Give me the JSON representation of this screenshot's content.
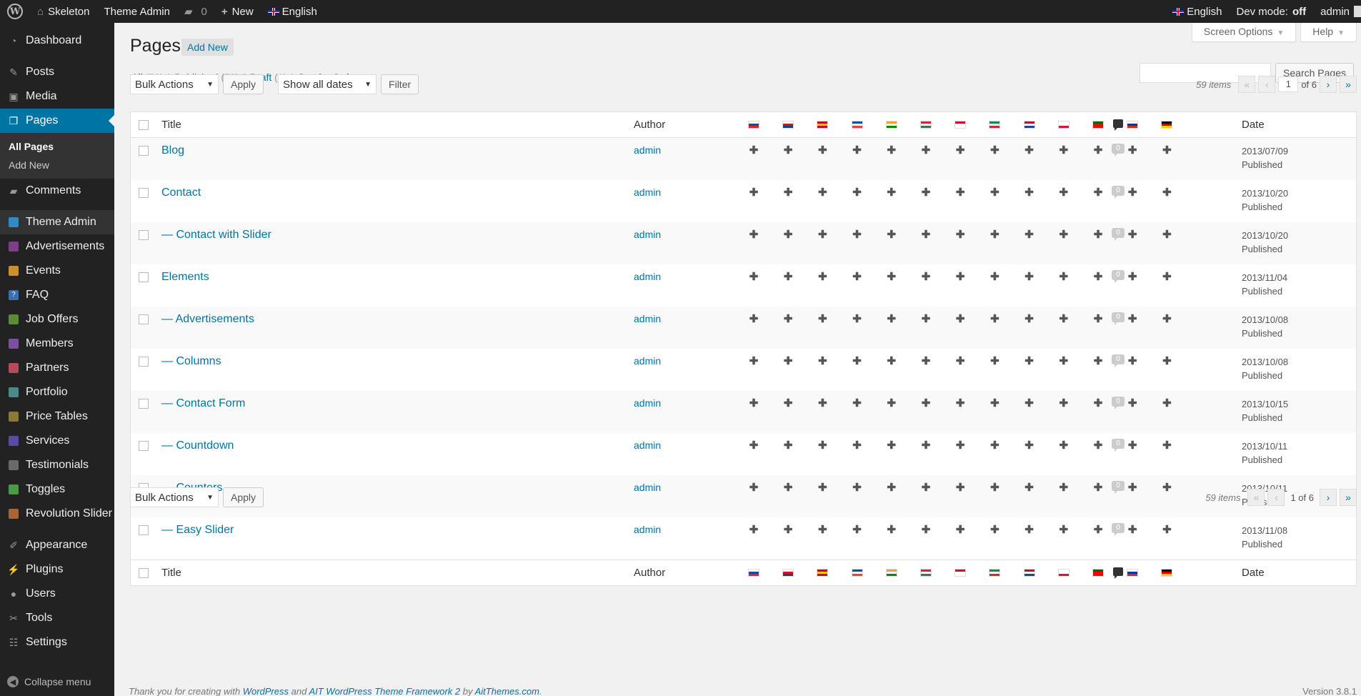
{
  "adminbar": {
    "site_name": "Skeleton",
    "theme_admin": "Theme Admin",
    "comments_count": "0",
    "new_label": "New",
    "language": "English",
    "right_language": "English",
    "dev_mode_label": "Dev mode:",
    "dev_mode_value": "off",
    "user": "admin"
  },
  "sidebar": {
    "items": [
      {
        "label": "Dashboard",
        "icon": "dashboard-icon"
      },
      {
        "label": "Posts",
        "icon": "pin-icon"
      },
      {
        "label": "Media",
        "icon": "media-icon"
      },
      {
        "label": "Pages",
        "icon": "pages-icon"
      },
      {
        "label": "Comments",
        "icon": "comments-icon"
      },
      {
        "label": "Theme Admin",
        "icon": "theme-admin-icon"
      },
      {
        "label": "Advertisements",
        "icon": "advertisements-icon"
      },
      {
        "label": "Events",
        "icon": "events-icon"
      },
      {
        "label": "FAQ",
        "icon": "faq-icon"
      },
      {
        "label": "Job Offers",
        "icon": "job-offers-icon"
      },
      {
        "label": "Members",
        "icon": "members-icon"
      },
      {
        "label": "Partners",
        "icon": "partners-icon"
      },
      {
        "label": "Portfolio",
        "icon": "portfolio-icon"
      },
      {
        "label": "Price Tables",
        "icon": "price-tables-icon"
      },
      {
        "label": "Services",
        "icon": "services-icon"
      },
      {
        "label": "Testimonials",
        "icon": "testimonials-icon"
      },
      {
        "label": "Toggles",
        "icon": "toggles-icon"
      },
      {
        "label": "Revolution Slider",
        "icon": "revolution-slider-icon"
      },
      {
        "label": "Appearance",
        "icon": "appearance-icon"
      },
      {
        "label": "Plugins",
        "icon": "plugins-icon"
      },
      {
        "label": "Users",
        "icon": "users-icon"
      },
      {
        "label": "Tools",
        "icon": "tools-icon"
      },
      {
        "label": "Settings",
        "icon": "settings-icon"
      }
    ],
    "submenu": [
      "All Pages",
      "Add New"
    ],
    "collapse_label": "Collapse menu"
  },
  "screen_meta": {
    "options": "Screen Options",
    "help": "Help"
  },
  "header": {
    "title": "Pages",
    "add_new": "Add New"
  },
  "filters": {
    "all": "All",
    "all_count": "(59)",
    "published": "Published",
    "published_count": "(58)",
    "draft": "Draft",
    "draft_count": "(1)",
    "sort": "Sort by Order"
  },
  "search": {
    "button": "Search Pages"
  },
  "tablenav_top": {
    "bulk": "Bulk Actions",
    "apply": "Apply",
    "dates": "Show all dates",
    "filter": "Filter",
    "items": "59 items",
    "current_page": "1",
    "of_pages": "of 6"
  },
  "tablenav_bottom": {
    "bulk": "Bulk Actions",
    "apply": "Apply",
    "items": "59 items",
    "page_text": "1 of 6"
  },
  "pagination_glyphs": {
    "first": "«",
    "prev": "‹",
    "next": "›",
    "last": "»"
  },
  "columns": {
    "title": "Title",
    "author": "Author",
    "date": "Date"
  },
  "flags": [
    {
      "code": "sk",
      "colors": [
        "#ffffff",
        "#0b4ea2",
        "#ee1c25"
      ]
    },
    {
      "code": "cz",
      "colors": [
        "#ffffff",
        "#d7141a",
        "#11457e"
      ]
    },
    {
      "code": "es",
      "colors": [
        "#c60b1e",
        "#ffc400",
        "#c60b1e"
      ]
    },
    {
      "code": "fr",
      "colors": [
        "#0055a4",
        "#ffffff",
        "#ef4135"
      ]
    },
    {
      "code": "in",
      "colors": [
        "#ff9933",
        "#ffffff",
        "#138808"
      ]
    },
    {
      "code": "hu",
      "colors": [
        "#ce2939",
        "#ffffff",
        "#477050"
      ]
    },
    {
      "code": "id",
      "colors": [
        "#ce1126",
        "#ffffff",
        "#ffffff"
      ]
    },
    {
      "code": "it",
      "colors": [
        "#009246",
        "#ffffff",
        "#ce2b37"
      ]
    },
    {
      "code": "nl",
      "colors": [
        "#ae1c28",
        "#ffffff",
        "#21468b"
      ]
    },
    {
      "code": "pl",
      "colors": [
        "#ffffff",
        "#ffffff",
        "#dc143c"
      ]
    },
    {
      "code": "pt",
      "colors": [
        "#006600",
        "#ff0000",
        "#ff0000"
      ]
    },
    {
      "code": "ru",
      "colors": [
        "#ffffff",
        "#0039a6",
        "#d52b1e"
      ]
    },
    {
      "code": "de",
      "colors": [
        "#000000",
        "#dd0000",
        "#ffce00"
      ]
    }
  ],
  "rows": [
    {
      "title": "Blog",
      "author": "admin",
      "comments": "0",
      "date": "2013/07/09",
      "status": "Published"
    },
    {
      "title": "Contact",
      "author": "admin",
      "comments": "0",
      "date": "2013/10/20",
      "status": "Published"
    },
    {
      "title": "— Contact with Slider",
      "author": "admin",
      "comments": "0",
      "date": "2013/10/20",
      "status": "Published"
    },
    {
      "title": "Elements",
      "author": "admin",
      "comments": "0",
      "date": "2013/11/04",
      "status": "Published"
    },
    {
      "title": "— Advertisements",
      "author": "admin",
      "comments": "0",
      "date": "2013/10/08",
      "status": "Published"
    },
    {
      "title": "— Columns",
      "author": "admin",
      "comments": "0",
      "date": "2013/10/08",
      "status": "Published"
    },
    {
      "title": "— Contact Form",
      "author": "admin",
      "comments": "0",
      "date": "2013/10/15",
      "status": "Published"
    },
    {
      "title": "— Countdown",
      "author": "admin",
      "comments": "0",
      "date": "2013/10/11",
      "status": "Published"
    },
    {
      "title": "— Counters",
      "author": "admin",
      "comments": "0",
      "date": "2013/10/11",
      "status": "Published"
    },
    {
      "title": "— Easy Slider",
      "author": "admin",
      "comments": "0",
      "date": "2013/11/08",
      "status": "Published"
    }
  ],
  "footer": {
    "pre": "Thank you for creating with",
    "wp": "WordPress",
    "and": "and",
    "ait": "AIT WordPress Theme Framework 2",
    "by": "by",
    "themes": "AitThemes.com",
    "end": ".",
    "version": "Version 3.8.1"
  },
  "colors": {
    "accent": "#0074a2",
    "sidebar_bg": "#222222",
    "adminbar_bg": "#222222"
  }
}
